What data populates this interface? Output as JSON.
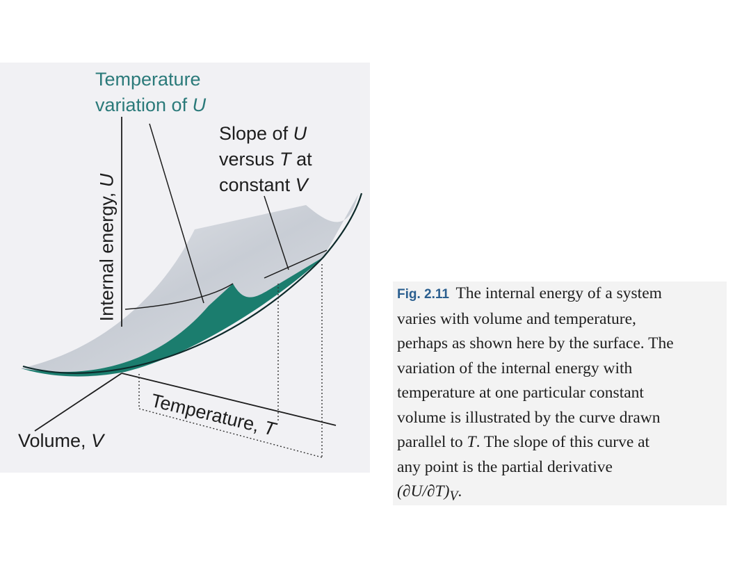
{
  "figure": {
    "labels": {
      "temperature_variation_line1": "Temperature",
      "temperature_variation_line2": "variation of",
      "temperature_variation_symbol": "U",
      "slope_line1_text": "Slope of",
      "slope_line1_symbol": "U",
      "slope_line2_text": "versus",
      "slope_line2_symbol": "T",
      "slope_line2_end": "at",
      "slope_line3_text": "constant",
      "slope_line3_symbol": "V",
      "y_axis_text": "Internal energy,",
      "y_axis_symbol": "U",
      "temperature_axis_text": "Temperature,",
      "temperature_axis_symbol": "T",
      "volume_axis_text": "Volume,",
      "volume_axis_symbol": "V"
    },
    "colors": {
      "teal": "#1b7d6e",
      "teal_dark": "#0f5c50",
      "surface": "#c9ced6",
      "label_teal": "#2b7a7a"
    }
  },
  "caption": {
    "fig_number": "Fig. 2.11",
    "lines": [
      "The internal energy of a system",
      "varies with volume and temperature,",
      "perhaps as shown here by the surface. The",
      "variation of the internal energy with",
      "temperature at one particular constant",
      "volume is illustrated by the curve drawn"
    ],
    "line7_before": "parallel to ",
    "line7_symbol": "T",
    "line7_after": ". The slope of this curve at",
    "line8": "any point is the partial derivative",
    "derivative": "(∂U/∂T)",
    "derivative_subscript": "V",
    "derivative_end": "."
  }
}
